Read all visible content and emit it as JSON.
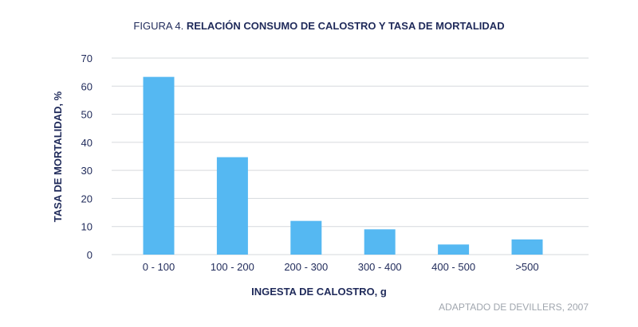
{
  "figure": {
    "title_prefix": "FIGURA 4.",
    "title_main": "RELACIÓN CONSUMO DE CALOSTRO Y TASA DE MORTALIDAD",
    "source": "ADAPTADO DE DEVILLERS, 2007"
  },
  "chart_data": {
    "type": "bar",
    "title": "FIGURA 4. RELACIÓN CONSUMO DE CALOSTRO Y TASA DE MORTALIDAD",
    "xlabel": "INGESTA DE CALOSTRO, g",
    "ylabel": "TASA DE MORTALIDAD, %",
    "categories": [
      "0 - 100",
      "100 - 200",
      "200 - 300",
      "300 - 400",
      "400 - 500",
      ">500"
    ],
    "values": [
      63.3,
      34.7,
      12.0,
      9.0,
      3.6,
      5.4
    ],
    "ylim": [
      0,
      70
    ],
    "yticks": [
      0,
      10,
      20,
      30,
      40,
      50,
      60,
      70
    ],
    "grid": true,
    "bar_color": "#55b8f2",
    "text_color": "#1f2a5a"
  }
}
